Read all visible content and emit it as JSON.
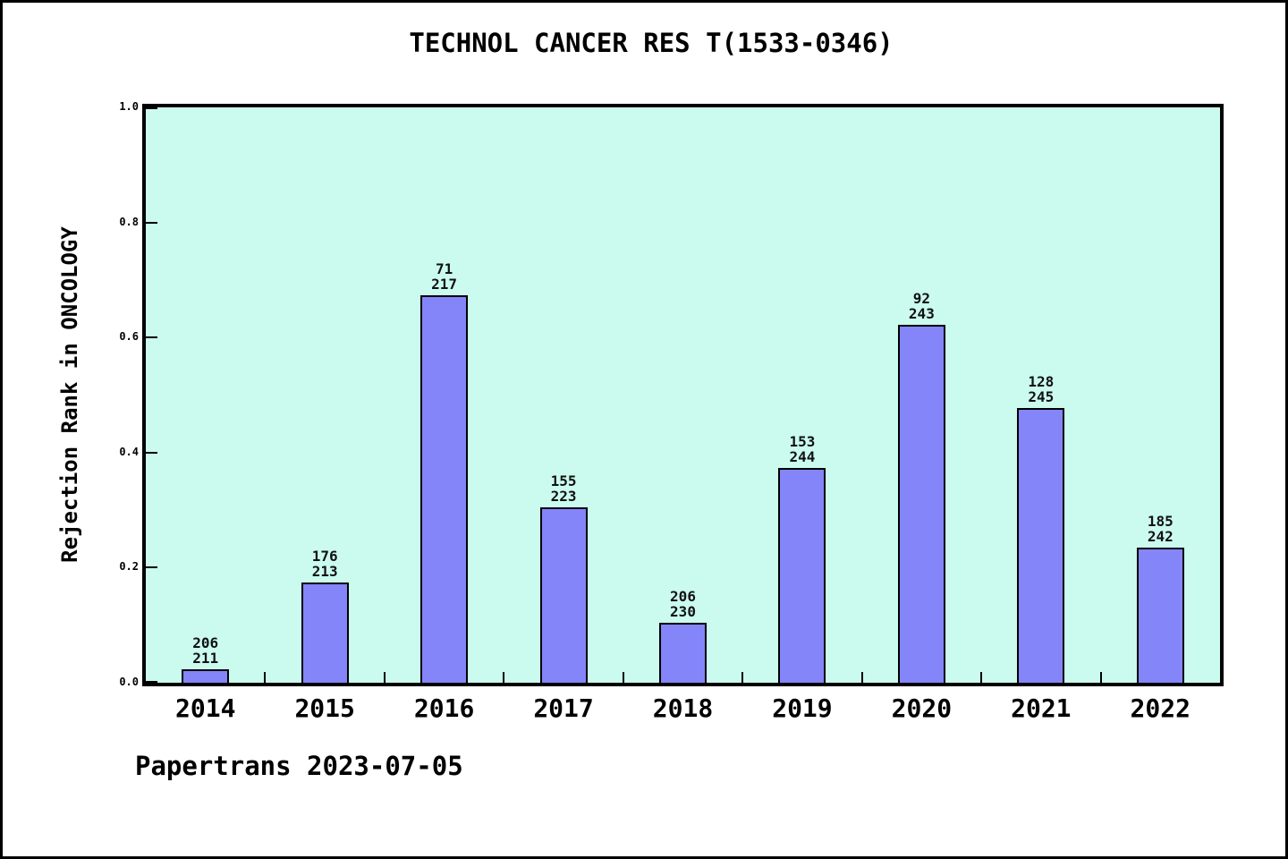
{
  "page": {
    "title": "TECHNOL CANCER RES T(1533-0346)",
    "footer": "Papertrans 2023-07-05"
  },
  "colors": {
    "bar_fill": "#8585fa",
    "bar_edge": "#000000",
    "plot_bg": "#cbfbee",
    "frame": "#000000",
    "page_bg": "#ffffff",
    "text": "#000000"
  },
  "chart_data": {
    "type": "bar",
    "title": "TECHNOL CANCER RES T(1533-0346)",
    "ylabel": "Rejection Rank in ONCOLOGY",
    "xlabel": "",
    "ylim": [
      0,
      1
    ],
    "yticks": [
      "0.0",
      "0.2",
      "0.4",
      "0.6",
      "0.8",
      "1.0"
    ],
    "grid": false,
    "legend_position": "none",
    "categories": [
      "2014",
      "2015",
      "2016",
      "2017",
      "2018",
      "2019",
      "2020",
      "2021",
      "2022"
    ],
    "series": [
      {
        "name": "Rejection Rank in ONCOLOGY",
        "values": [
          0.0237,
          0.1737,
          0.6728,
          0.3049,
          0.1043,
          0.373,
          0.6214,
          0.4776,
          0.2355
        ]
      }
    ],
    "bar_labels": [
      {
        "rank": "206",
        "total": "211"
      },
      {
        "rank": "176",
        "total": "213"
      },
      {
        "rank": "71",
        "total": "217"
      },
      {
        "rank": "155",
        "total": "223"
      },
      {
        "rank": "206",
        "total": "230"
      },
      {
        "rank": "153",
        "total": "244"
      },
      {
        "rank": "92",
        "total": "243"
      },
      {
        "rank": "128",
        "total": "245"
      },
      {
        "rank": "185",
        "total": "242"
      }
    ],
    "annotation": "Papertrans 2023-07-05"
  }
}
